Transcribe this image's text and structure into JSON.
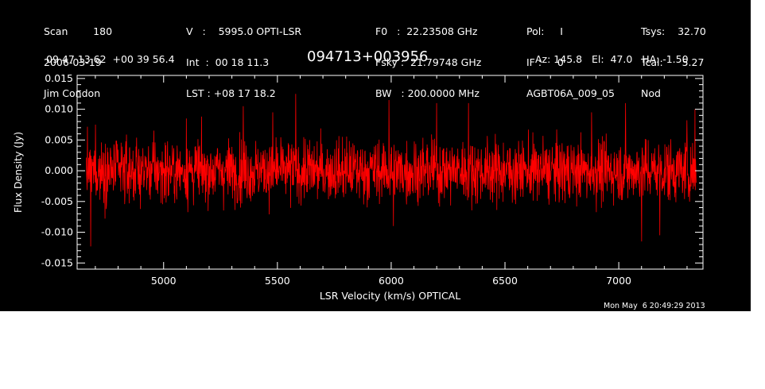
{
  "header": {
    "col1": [
      "Scan        180",
      "2006-03-19",
      "Jim Condon"
    ],
    "col2": [
      "V   :    5995.0 OPTI-LSR",
      "Int  :  00 18 11.3",
      "LST : +08 17 18.2"
    ],
    "col3": [
      "F0   :  22.23508 GHz",
      "Fsky :  21.79748 GHz",
      "BW   : 200.0000 MHz"
    ],
    "col4": [
      "Pol:     I",
      "IF :     0",
      "AGBT06A_009_05"
    ],
    "col5": [
      "Tsys:    32.70",
      "Tcal:      5.27",
      "Nod"
    ],
    "coords": "09 47 13.62  +00 39 56.4",
    "source": "094713+003956",
    "pointing": "Az: 145.8   El:  47.0   HA: -1.50"
  },
  "timestamp": "Mon May  6 20:49:29 2013",
  "colors": {
    "background": "#000000",
    "axes": "#ffffff",
    "trace": "#ff0000"
  },
  "chart_data": {
    "type": "line",
    "title": "094713+003956",
    "xlabel": "LSR Velocity (km/s) OPTICAL",
    "ylabel": "Flux Density (Jy)",
    "xlim": [
      4620,
      7370
    ],
    "ylim": [
      -0.016,
      0.0155
    ],
    "xticks": [
      5000,
      5500,
      6000,
      6500,
      7000
    ],
    "xtick_labels": [
      "5000",
      "5500",
      "6000",
      "6500",
      "7000"
    ],
    "yticks": [
      -0.015,
      -0.01,
      -0.005,
      0.0,
      0.005,
      0.01,
      0.015
    ],
    "ytick_labels": [
      "-0.015",
      "-0.010",
      "-0.005",
      "0.000",
      "0.005",
      "0.010",
      "0.015"
    ],
    "grid": false,
    "series": [
      {
        "color": "#ff0000",
        "x_range": [
          4660,
          7340
        ],
        "n_points": 2048,
        "baseline": 0.0,
        "rms": 0.0025,
        "peaks": [
          {
            "x": 4700,
            "y": 0.0075
          },
          {
            "x": 4680,
            "y": -0.0123
          },
          {
            "x": 5100,
            "y": 0.0085
          },
          {
            "x": 5350,
            "y": 0.0105
          },
          {
            "x": 5480,
            "y": 0.0095
          },
          {
            "x": 5580,
            "y": 0.0125
          },
          {
            "x": 5990,
            "y": 0.0115
          },
          {
            "x": 6010,
            "y": -0.009
          },
          {
            "x": 6200,
            "y": 0.011
          },
          {
            "x": 6340,
            "y": 0.011
          },
          {
            "x": 6880,
            "y": 0.0095
          },
          {
            "x": 7030,
            "y": 0.011
          },
          {
            "x": 7100,
            "y": -0.0115
          },
          {
            "x": 7180,
            "y": -0.0105
          },
          {
            "x": 7300,
            "y": 0.0082
          },
          {
            "x": 7335,
            "y": 0.01
          }
        ]
      }
    ]
  }
}
